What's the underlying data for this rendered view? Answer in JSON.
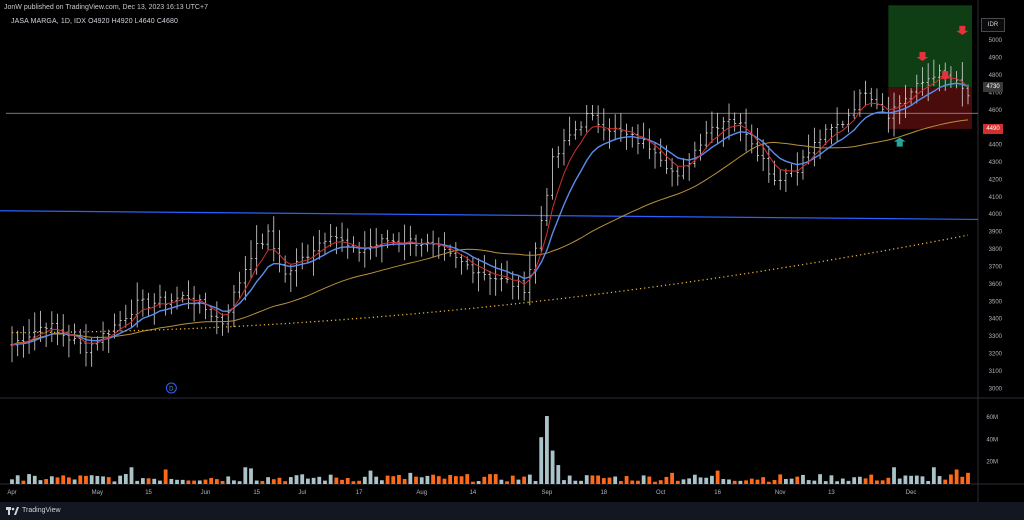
{
  "header": {
    "published_line": "JonW published on TradingView.com, Dec 13, 2023 16:13 UTC+7",
    "symbol_line": "JASA MARGA, 1D, IDX  O4920  H4920  L4640  C4680"
  },
  "currency_label": "IDR",
  "footer": {
    "brand": "TradingView"
  },
  "price_tags": [
    {
      "value": "4730",
      "price": 4730,
      "bg": "#3a3a3a"
    },
    {
      "value": "4490",
      "price": 4490,
      "bg": "#d32f2f"
    }
  ],
  "colors": {
    "bar": "#d9d9d9",
    "ema_fast": "#d32f2f",
    "ema_mid": "#5b8def",
    "sma_slow": "#b8923a",
    "sma_long": "#e8b33a",
    "trend_line": "#2962ff",
    "level_line": "#9e9e9e",
    "vol_up": "#a9c3c8",
    "vol_down": "#ff6a1a",
    "profit_zone": "#0f3d14",
    "loss_zone": "#4a0b0b",
    "arrow_down": "#e5323e",
    "arrow_up": "#26a69a"
  },
  "chart_data": {
    "type": "bar",
    "y_axis_ticks": [
      3000,
      3100,
      3200,
      3300,
      3400,
      3500,
      3600,
      3700,
      3800,
      3900,
      4000,
      4100,
      4200,
      4300,
      4400,
      4500,
      4600,
      4700,
      4800,
      4900,
      5000
    ],
    "ylim": [
      2950,
      5150
    ],
    "x_axis_labels": [
      {
        "label": "Apr",
        "i": 0
      },
      {
        "label": "May",
        "i": 15
      },
      {
        "label": "15",
        "i": 24
      },
      {
        "label": "Jun",
        "i": 34
      },
      {
        "label": "15",
        "i": 43
      },
      {
        "label": "Jul",
        "i": 51
      },
      {
        "label": "17",
        "i": 61
      },
      {
        "label": "Aug",
        "i": 72
      },
      {
        "label": "14",
        "i": 81
      },
      {
        "label": "Sep",
        "i": 94
      },
      {
        "label": "18",
        "i": 104
      },
      {
        "label": "Oct",
        "i": 114
      },
      {
        "label": "16",
        "i": 124
      },
      {
        "label": "Nov",
        "i": 135
      },
      {
        "label": "13",
        "i": 144
      },
      {
        "label": "Dec",
        "i": 158
      }
    ],
    "volume_ticks": [
      {
        "label": "20M",
        "v": 20
      },
      {
        "label": "40M",
        "v": 40
      },
      {
        "label": "60M",
        "v": 60
      }
    ],
    "volume_max": 70,
    "horizontal_level": 4580,
    "trend_line": [
      {
        "i": 0,
        "p": 4020
      },
      {
        "i": 168,
        "p": 3970
      }
    ],
    "long_ma_start": 3320,
    "long_ma_end": 3880,
    "position_box": {
      "i_start": 154,
      "i_end": 168,
      "entry": 4730,
      "target": 5200,
      "stop": 4490
    },
    "arrows_down": [
      {
        "i": 160,
        "p": 4880
      },
      {
        "i": 164,
        "p": 4770
      },
      {
        "i": 167,
        "p": 5030
      }
    ],
    "arrows_up": [
      {
        "i": 156,
        "p": 4440
      }
    ],
    "dividend_marker": {
      "i": 28,
      "label": "D"
    },
    "anchors": [
      {
        "i": 0,
        "p": 3250
      },
      {
        "i": 6,
        "p": 3370
      },
      {
        "i": 13,
        "p": 3230
      },
      {
        "i": 17,
        "p": 3330
      },
      {
        "i": 22,
        "p": 3480
      },
      {
        "i": 27,
        "p": 3500
      },
      {
        "i": 31,
        "p": 3530
      },
      {
        "i": 37,
        "p": 3380
      },
      {
        "i": 42,
        "p": 3770
      },
      {
        "i": 45,
        "p": 3880
      },
      {
        "i": 48,
        "p": 3650
      },
      {
        "i": 56,
        "p": 3900
      },
      {
        "i": 60,
        "p": 3780
      },
      {
        "i": 66,
        "p": 3850
      },
      {
        "i": 72,
        "p": 3840
      },
      {
        "i": 79,
        "p": 3720
      },
      {
        "i": 86,
        "p": 3620
      },
      {
        "i": 90,
        "p": 3580
      },
      {
        "i": 92,
        "p": 3800
      },
      {
        "i": 95,
        "p": 4300
      },
      {
        "i": 98,
        "p": 4450
      },
      {
        "i": 101,
        "p": 4560
      },
      {
        "i": 108,
        "p": 4450
      },
      {
        "i": 113,
        "p": 4380
      },
      {
        "i": 117,
        "p": 4200
      },
      {
        "i": 122,
        "p": 4480
      },
      {
        "i": 126,
        "p": 4560
      },
      {
        "i": 129,
        "p": 4480
      },
      {
        "i": 134,
        "p": 4200
      },
      {
        "i": 138,
        "p": 4270
      },
      {
        "i": 142,
        "p": 4440
      },
      {
        "i": 146,
        "p": 4530
      },
      {
        "i": 150,
        "p": 4720
      },
      {
        "i": 154,
        "p": 4580
      },
      {
        "i": 158,
        "p": 4700
      },
      {
        "i": 162,
        "p": 4810
      },
      {
        "i": 165,
        "p": 4780
      },
      {
        "i": 168,
        "p": 4680
      }
    ],
    "volume_spikes": [
      {
        "i": 93,
        "v": 42
      },
      {
        "i": 94,
        "v": 61
      },
      {
        "i": 95,
        "v": 30
      },
      {
        "i": 96,
        "v": 17
      },
      {
        "i": 41,
        "v": 15
      },
      {
        "i": 21,
        "v": 15
      },
      {
        "i": 27,
        "v": 13
      },
      {
        "i": 42,
        "v": 14
      },
      {
        "i": 116,
        "v": 10
      },
      {
        "i": 124,
        "v": 12
      },
      {
        "i": 155,
        "v": 15
      },
      {
        "i": 162,
        "v": 15
      },
      {
        "i": 166,
        "v": 13
      },
      {
        "i": 168,
        "v": 10
      },
      {
        "i": 63,
        "v": 12
      },
      {
        "i": 70,
        "v": 10
      },
      {
        "i": 2,
        "v": 3
      }
    ]
  }
}
